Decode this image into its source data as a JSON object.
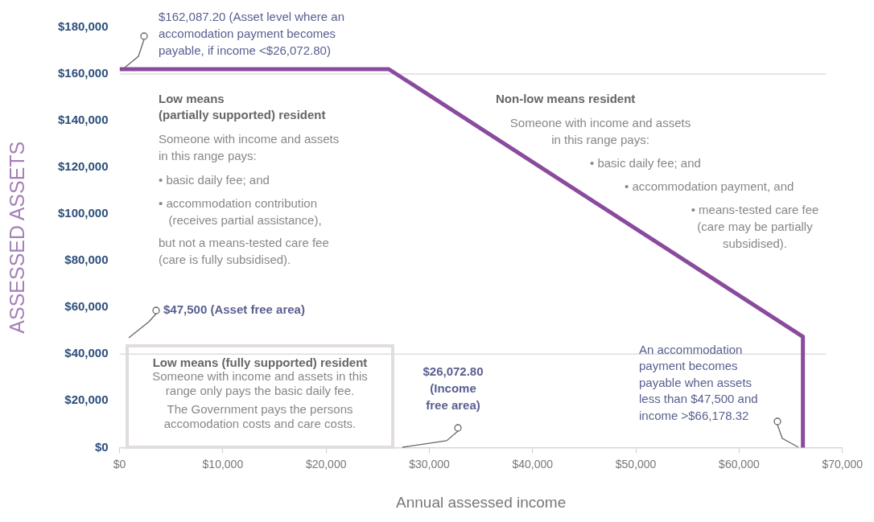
{
  "chart_data": {
    "type": "line",
    "xlabel": "Annual assessed income",
    "ylabel": "ASSESSED ASSETS",
    "xlim": [
      0,
      70000
    ],
    "ylim": [
      0,
      180000
    ],
    "xticks": [
      {
        "value": 0,
        "label": "$0"
      },
      {
        "value": 10000,
        "label": "$10,000"
      },
      {
        "value": 20000,
        "label": "$20,000"
      },
      {
        "value": 30000,
        "label": "$30,000"
      },
      {
        "value": 40000,
        "label": "$40,000"
      },
      {
        "value": 50000,
        "label": "$50,000"
      },
      {
        "value": 60000,
        "label": "$60,000"
      },
      {
        "value": 70000,
        "label": "$70,000"
      }
    ],
    "yticks": [
      {
        "value": 0,
        "label": "$0"
      },
      {
        "value": 20000,
        "label": "$20,000"
      },
      {
        "value": 40000,
        "label": "$40,000"
      },
      {
        "value": 60000,
        "label": "$60,000"
      },
      {
        "value": 80000,
        "label": "$80,000"
      },
      {
        "value": 100000,
        "label": "$100,000"
      },
      {
        "value": 120000,
        "label": "$120,000"
      },
      {
        "value": 140000,
        "label": "$140,000"
      },
      {
        "value": 160000,
        "label": "$160,000"
      },
      {
        "value": 180000,
        "label": "$180,000"
      }
    ],
    "series": [
      {
        "color": "#8a4a9e",
        "x": [
          0,
          26072.8,
          66178.32,
          66178.32
        ],
        "values": [
          162087.2,
          162087.2,
          47500,
          0
        ]
      }
    ],
    "marker": "none",
    "line_style": "solid",
    "grid": false,
    "legend": false,
    "ref_lines": [
      {
        "axis": "y",
        "value": 160000,
        "color": "#dddddd"
      },
      {
        "axis": "y",
        "value": 40000,
        "color": "#dddddd"
      }
    ],
    "annotations": [
      "$162,087.20 (Asset level where an\naccomodation payment becomes\npayable, if income <$26,072.80)",
      "Low means\n(partially supported) resident",
      "Someone with income and assets\nin this range pays:",
      "• basic daily fee; and",
      "• accommodation contribution\n   (receives partial assistance),",
      "but not a means-tested care fee\n(care is fully subsidised).",
      "Non-low means resident",
      "Someone with income and assets\nin this range pays:",
      "• basic daily fee; and",
      "• accommodation payment, and",
      "• means-tested care fee\n(care may be partially\nsubsidised).",
      "$47,500 (Asset free area)",
      "Low means (fully supported) resident",
      "Someone with income and assets in this\nrange only pays the basic daily fee.",
      "The Government pays the persons\naccomodation costs and care costs.",
      "$26,072.80\n(Income\nfree area)",
      "An accommodation\npayment becomes\npayable when assets\nless than $47,500 and\nincome >$66,178.32"
    ]
  }
}
